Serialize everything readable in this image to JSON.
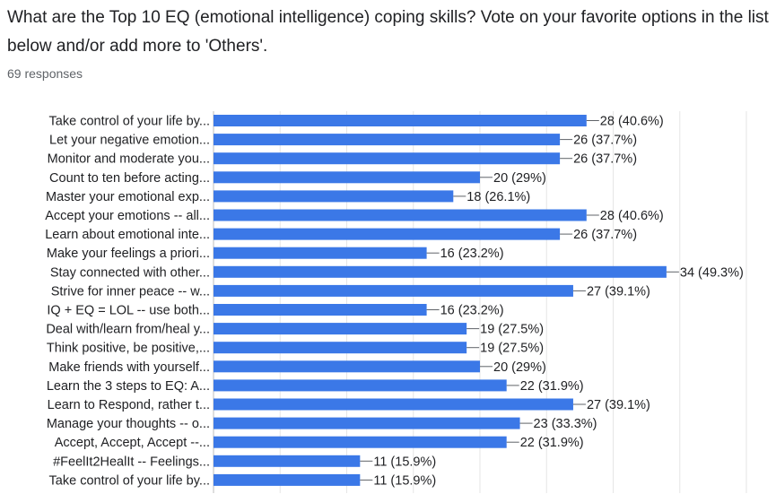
{
  "question": "What are the Top 10 EQ (emotional intelligence) coping skills? Vote on your favorite options in the list below and/or add more to 'Others'.",
  "responses_label": "69 responses",
  "colors": {
    "bar": "#3b78e7",
    "grid": "#e6e6e6",
    "text": "#202124",
    "connector": "#5f6368"
  },
  "chart_data": {
    "type": "bar",
    "orientation": "horizontal",
    "title": "",
    "xlabel": "",
    "ylabel": "",
    "grid": true,
    "categories": [
      "Take control of your life by...",
      "Let your negative emotion...",
      "Monitor and moderate you...",
      "Count to ten before acting...",
      "Master your emotional exp...",
      "Accept your emotions -- all...",
      "Learn about emotional inte...",
      "Make your feelings a priori...",
      "Stay connected with other...",
      "Strive for inner peace -- w...",
      "IQ + EQ = LOL -- use both...",
      "Deal with/learn from/heal y...",
      "Think positive, be positive,...",
      "Make friends with yourself...",
      "Learn the 3 steps to EQ: A...",
      "Learn to Respond, rather t...",
      "Manage your thoughts -- o...",
      "Accept, Accept, Accept --...",
      "#FeelIt2HealIt -- Feelings...",
      "Take control of your life by..."
    ],
    "values": [
      28,
      26,
      26,
      20,
      18,
      28,
      26,
      16,
      34,
      27,
      16,
      19,
      19,
      20,
      22,
      27,
      23,
      22,
      11,
      11
    ],
    "value_labels": [
      "28 (40.6%)",
      "26 (37.7%)",
      "26 (37.7%)",
      "20 (29%)",
      "18 (26.1%)",
      "28 (40.6%)",
      "26 (37.7%)",
      "16 (23.2%)",
      "34 (49.3%)",
      "27 (39.1%)",
      "16 (23.2%)",
      "19 (27.5%)",
      "19 (27.5%)",
      "20 (29%)",
      "22 (31.9%)",
      "27 (39.1%)",
      "23 (33.3%)",
      "22 (31.9%)",
      "11 (15.9%)",
      "11 (15.9%)"
    ],
    "xlim": [
      0,
      40
    ]
  }
}
